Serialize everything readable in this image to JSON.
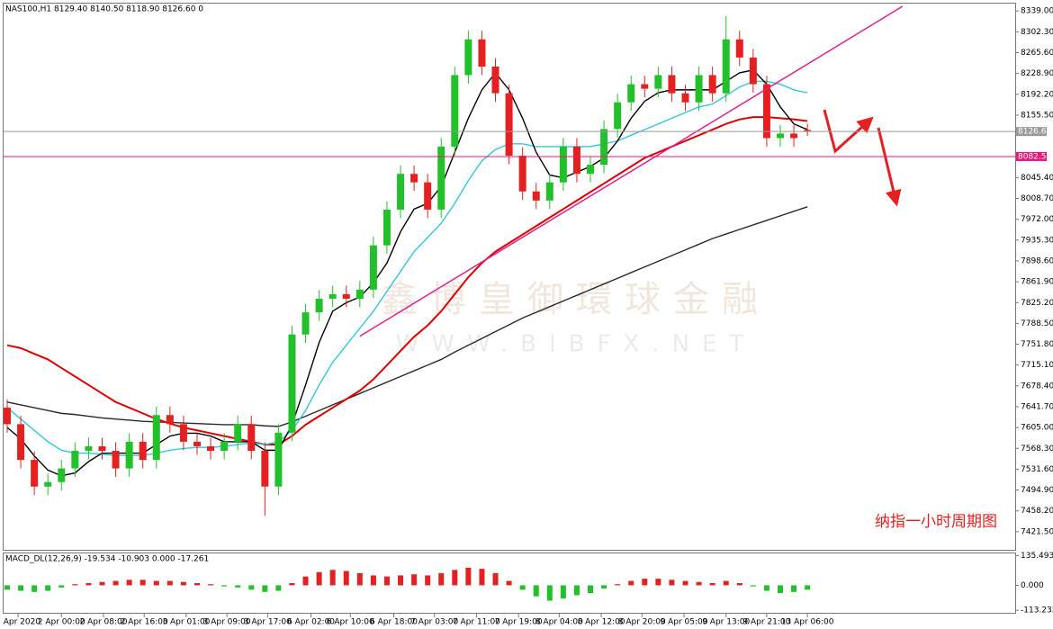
{
  "chart_data": [
    {
      "type": "candlestick",
      "title": "NAS100,H1  8129.40 8140.50 8118.90 8126.60  0",
      "up_color": "#22c02a",
      "down_color": "#e42020",
      "open": [
        7640,
        7611,
        7548,
        7501,
        7509,
        7533,
        7564,
        7572,
        7564,
        7533,
        7580,
        7548,
        7627,
        7611,
        7580,
        7572,
        7564,
        7580,
        7611,
        7564,
        7501,
        7596,
        7769,
        7808,
        7832,
        7840,
        7832,
        7848,
        7926,
        7989,
        8052,
        8037,
        7989,
        8100,
        8226,
        8289,
        8241,
        8194,
        8084,
        8021,
        8005,
        8037,
        8100,
        8052,
        8068,
        8131,
        8178,
        8210,
        8202,
        8226,
        8194,
        8178,
        8226,
        8194,
        8289,
        8257,
        8210,
        8115,
        8123,
        8129.4
      ],
      "high": [
        7655,
        7626,
        7563,
        7524,
        7548,
        7579,
        7587,
        7587,
        7579,
        7595,
        7595,
        7642,
        7642,
        7626,
        7595,
        7587,
        7595,
        7626,
        7626,
        7579,
        7611,
        7784,
        7823,
        7847,
        7855,
        7855,
        7863,
        7941,
        8004,
        8067,
        8067,
        8052,
        8115,
        8241,
        8304,
        8304,
        8256,
        8209,
        8099,
        8036,
        8052,
        8115,
        8115,
        8083,
        8146,
        8193,
        8225,
        8225,
        8241,
        8241,
        8209,
        8241,
        8241,
        8330,
        8304,
        8272,
        8225,
        8138,
        8138,
        8140.5
      ],
      "low": [
        7596,
        7533,
        7486,
        7486,
        7494,
        7518,
        7549,
        7549,
        7518,
        7518,
        7533,
        7533,
        7596,
        7565,
        7557,
        7549,
        7549,
        7565,
        7549,
        7450,
        7486,
        7581,
        7754,
        7793,
        7817,
        7817,
        7817,
        7833,
        7911,
        7974,
        8022,
        7974,
        7974,
        8085,
        8211,
        8226,
        8179,
        8069,
        8006,
        7990,
        7990,
        8022,
        8037,
        8037,
        8053,
        8116,
        8163,
        8187,
        8187,
        8179,
        8163,
        8163,
        8179,
        8179,
        8242,
        8195,
        8100,
        8100,
        8100,
        8118.9
      ],
      "close": [
        7611,
        7548,
        7501,
        7509,
        7533,
        7564,
        7572,
        7564,
        7533,
        7580,
        7548,
        7627,
        7611,
        7580,
        7572,
        7564,
        7580,
        7611,
        7564,
        7501,
        7596,
        7769,
        7808,
        7832,
        7840,
        7832,
        7848,
        7926,
        7989,
        8052,
        8037,
        7989,
        8100,
        8226,
        8289,
        8241,
        8194,
        8084,
        8021,
        8005,
        8037,
        8100,
        8052,
        8068,
        8131,
        8178,
        8210,
        8202,
        8226,
        8194,
        8178,
        8226,
        8194,
        8289,
        8257,
        8210,
        8115,
        8123,
        8115,
        8126.6
      ],
      "series": [
        {
          "color": "#2a2a2a",
          "values": [
            7650,
            7645,
            7640,
            7635,
            7630,
            7628,
            7625,
            7622,
            7620,
            7618,
            7616,
            7615,
            7614,
            7613,
            7612,
            7611,
            7610,
            7610,
            7610,
            7608,
            7607,
            7615,
            7625,
            7635,
            7645,
            7655,
            7665,
            7675,
            7685,
            7695,
            7705,
            7715,
            7725,
            7738,
            7750,
            7762,
            7774,
            7786,
            7798,
            7808,
            7818,
            7828,
            7838,
            7848,
            7858,
            7868,
            7878,
            7888,
            7898,
            7908,
            7918,
            7928,
            7938,
            7946,
            7954,
            7962,
            7970,
            7978,
            7986,
            7994
          ]
        },
        {
          "color": "#e00000",
          "values": [
            7750,
            7745,
            7735,
            7725,
            7710,
            7695,
            7680,
            7665,
            7650,
            7640,
            7630,
            7620,
            7612,
            7605,
            7600,
            7595,
            7590,
            7585,
            7580,
            7575,
            7575,
            7590,
            7610,
            7625,
            7640,
            7655,
            7670,
            7690,
            7715,
            7740,
            7765,
            7785,
            7810,
            7840,
            7870,
            7895,
            7915,
            7930,
            7945,
            7960,
            7975,
            7990,
            8005,
            8020,
            8035,
            8050,
            8065,
            8080,
            8090,
            8100,
            8110,
            8120,
            8130,
            8140,
            8148,
            8152,
            8152,
            8150,
            8148,
            8145
          ]
        },
        {
          "color": "#30c8dc",
          "values": [
            7640,
            7620,
            7600,
            7580,
            7565,
            7560,
            7560,
            7558,
            7556,
            7556,
            7556,
            7560,
            7565,
            7568,
            7570,
            7570,
            7572,
            7575,
            7578,
            7575,
            7580,
            7600,
            7635,
            7680,
            7720,
            7750,
            7780,
            7810,
            7845,
            7880,
            7915,
            7940,
            7965,
            8000,
            8040,
            8075,
            8095,
            8105,
            8105,
            8100,
            8100,
            8100,
            8100,
            8100,
            8105,
            8110,
            8120,
            8130,
            8140,
            8150,
            8160,
            8170,
            8175,
            8190,
            8205,
            8215,
            8215,
            8210,
            8200,
            8195
          ]
        },
        {
          "color": "#000000",
          "values": [
            7605,
            7585,
            7555,
            7530,
            7520,
            7525,
            7545,
            7560,
            7560,
            7560,
            7560,
            7575,
            7590,
            7595,
            7595,
            7590,
            7580,
            7580,
            7580,
            7565,
            7565,
            7610,
            7680,
            7755,
            7810,
            7825,
            7835,
            7860,
            7895,
            7950,
            7990,
            8000,
            8030,
            8090,
            8150,
            8200,
            8230,
            8200,
            8150,
            8090,
            8050,
            8045,
            8055,
            8065,
            8080,
            8110,
            8150,
            8180,
            8195,
            8200,
            8200,
            8200,
            8200,
            8215,
            8230,
            8235,
            8210,
            8170,
            8140,
            8130
          ]
        }
      ],
      "trendline": {
        "color": "#e0208c",
        "x": [
          26,
          66
        ],
        "y": [
          7766,
          8347
        ]
      },
      "price_labels": [
        {
          "value": 8126.6,
          "label": "8126.60",
          "color": "#9a9a9a"
        },
        {
          "value": 8082.51,
          "label": "8082.51",
          "color": "#f0157a"
        }
      ],
      "ylim": [
        7388,
        8352
      ],
      "yticks": [
        {
          "value": 8339,
          "label": "8339.00"
        },
        {
          "value": 8302.3,
          "label": "8302.30"
        },
        {
          "value": 8265.6,
          "label": "8265.60"
        },
        {
          "value": 8228.9,
          "label": "8228.90"
        },
        {
          "value": 8192.2,
          "label": "8192.20"
        },
        {
          "value": 8155.5,
          "label": "8155.50"
        },
        {
          "value": 8045.4,
          "label": "8045.40"
        },
        {
          "value": 8008.7,
          "label": "8008.70"
        },
        {
          "value": 7972,
          "label": "7972.00"
        },
        {
          "value": 7935.3,
          "label": "7935.30"
        },
        {
          "value": 7898.6,
          "label": "7898.60"
        },
        {
          "value": 7861.9,
          "label": "7861.90"
        },
        {
          "value": 7825.2,
          "label": "7825.20"
        },
        {
          "value": 7788.5,
          "label": "7788.50"
        },
        {
          "value": 7751.8,
          "label": "7751.80"
        },
        {
          "value": 7715.1,
          "label": "7715.10"
        },
        {
          "value": 7678.4,
          "label": "7678.40"
        },
        {
          "value": 7641.7,
          "label": "7641.70"
        },
        {
          "value": 7605,
          "label": "7605.00"
        },
        {
          "value": 7568.3,
          "label": "7568.30"
        },
        {
          "value": 7531.6,
          "label": "7531.60"
        },
        {
          "value": 7494.9,
          "label": "7494.90"
        },
        {
          "value": 7458.2,
          "label": "7458.20"
        },
        {
          "value": 7421.5,
          "label": "7421.50"
        }
      ],
      "xticks": [
        {
          "value": 0.8,
          "label": "1 Apr 2020"
        },
        {
          "value": 4,
          "label": "2 Apr 00:00"
        },
        {
          "value": 7.1,
          "label": "2 Apr 08:00"
        },
        {
          "value": 10.1,
          "label": "2 Apr 16:00"
        },
        {
          "value": 13.2,
          "label": "3 Apr 01:00"
        },
        {
          "value": 16.2,
          "label": "3 Apr 09:00"
        },
        {
          "value": 19.2,
          "label": "3 Apr 17:00"
        },
        {
          "value": 22.4,
          "label": "6 Apr 02:00"
        },
        {
          "value": 25.3,
          "label": "6 Apr 10:00"
        },
        {
          "value": 28.5,
          "label": "6 Apr 18:00"
        },
        {
          "value": 31.5,
          "label": "7 Apr 03:00"
        },
        {
          "value": 34.6,
          "label": "7 Apr 11:00"
        },
        {
          "value": 37.7,
          "label": "7 Apr 19:00"
        },
        {
          "value": 40.7,
          "label": "8 Apr 04:00"
        },
        {
          "value": 43.8,
          "label": "8 Apr 12:00"
        },
        {
          "value": 46.8,
          "label": "8 Apr 20:00"
        },
        {
          "value": 49.9,
          "label": "9 Apr 05:00"
        },
        {
          "value": 53,
          "label": "9 Apr 13:00"
        },
        {
          "value": 56,
          "label": "9 Apr 21:00"
        },
        {
          "value": 59,
          "label": "13 Apr 06:00"
        }
      ],
      "annotation": "纳指一小时周期图",
      "watermark": [
        "鑫博皇御環球金融",
        "WWW.BIBFX.NET"
      ]
    },
    {
      "type": "bar",
      "title": "MACD_DL(12,26,9) -19.534 -10.903 0.000 -17.261",
      "up_color": "#e42020",
      "down_color": "#22c02a",
      "values": [
        -20,
        -25,
        -30,
        -25,
        -10,
        5,
        10,
        15,
        20,
        25,
        25,
        20,
        20,
        15,
        10,
        5,
        -5,
        -10,
        -20,
        -30,
        -25,
        10,
        40,
        60,
        70,
        65,
        55,
        45,
        40,
        45,
        50,
        45,
        55,
        70,
        80,
        75,
        55,
        20,
        -20,
        -50,
        -70,
        -60,
        -45,
        -35,
        -15,
        5,
        20,
        30,
        30,
        25,
        20,
        15,
        10,
        20,
        10,
        -5,
        -25,
        -35,
        -30,
        -20
      ],
      "ylim": [
        -125,
        145
      ],
      "yticks": [
        {
          "value": 135.493,
          "label": "135.493"
        },
        {
          "value": 0,
          "label": "0.000"
        },
        {
          "value": -113.232,
          "label": "-113.232"
        }
      ]
    }
  ]
}
